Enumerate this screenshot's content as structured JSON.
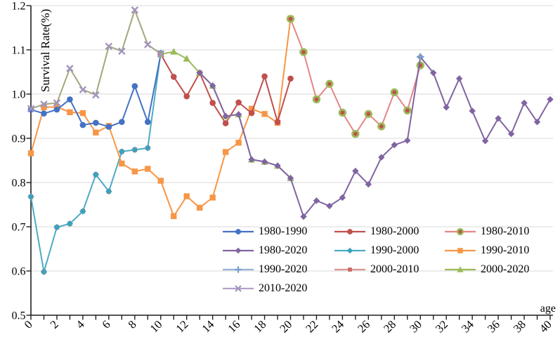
{
  "chart_data": {
    "type": "line",
    "title": "",
    "xlabel": "age",
    "ylabel": "Survival Rate(%)",
    "xlim": [
      0,
      40
    ],
    "ylim": [
      0.5,
      1.2
    ],
    "y_tick_step": 0.1,
    "x_tick_step_labeled": 2,
    "x_tick_step_minor": 1,
    "grid": "horizontal",
    "grid_color": "#D9D9D9",
    "axis_color": "#1F1F1F",
    "legend_position": "inside-bottom-center",
    "y_tick_labels": [
      "0.5",
      "0.6",
      "0.7",
      "0.8",
      "0.9",
      "1.0",
      "1.1",
      "1.2"
    ],
    "x_tick_labels": [
      "0",
      "2",
      "4",
      "6",
      "8",
      "10",
      "12",
      "14",
      "16",
      "18",
      "20",
      "22",
      "24",
      "26",
      "28",
      "30",
      "32",
      "34",
      "36",
      "38",
      "40"
    ],
    "series": [
      {
        "name": "1980-1990",
        "line_color": "#4472C4",
        "marker": "circle",
        "marker_color": "#4472C4",
        "start_x": 0,
        "values": [
          0.965,
          0.956,
          0.965,
          0.988,
          0.93,
          0.935,
          0.926,
          0.937,
          1.018,
          0.937,
          1.09
        ]
      },
      {
        "name": "1980-2000",
        "line_color": "#C0504D",
        "marker": "circle",
        "marker_color": "#C0504D",
        "start_x": 10,
        "values": [
          1.09,
          1.039,
          0.995,
          1.048,
          0.98,
          0.934,
          0.981,
          0.957,
          1.04,
          0.937,
          1.035
        ]
      },
      {
        "name": "1980-2010",
        "line_color": "#E38784",
        "marker": "ring-circle",
        "marker_color": "#C0504D",
        "marker_ring_color": "#9BBB59",
        "start_x": 20,
        "values": [
          1.17,
          1.095,
          0.988,
          1.023,
          0.958,
          0.91,
          0.955,
          0.927,
          1.004,
          0.963,
          1.065
        ]
      },
      {
        "name": "1980-2020",
        "line_color": "#8064A2",
        "marker": "diamond",
        "marker_color": "#8064A2",
        "start_x": 13,
        "values": [
          1.048,
          1.019,
          0.95,
          0.954,
          0.852,
          0.847,
          0.838,
          0.81,
          0.723,
          0.759,
          0.747,
          0.766,
          0.826,
          0.796,
          0.857,
          0.885,
          0.895,
          1.084,
          1.048,
          0.97,
          1.035,
          0.962,
          0.894,
          0.945,
          0.91,
          0.98,
          0.937,
          0.988
        ]
      },
      {
        "name": "1990-2000",
        "line_color": "#4BACC6",
        "marker": "diamond",
        "marker_color": "#3BA2BC",
        "start_x": 0,
        "values": [
          0.768,
          0.598,
          0.699,
          0.707,
          0.735,
          0.818,
          0.78,
          0.87,
          0.874,
          0.878,
          1.093
        ]
      },
      {
        "name": "1990-2010",
        "line_color": "#F79646",
        "marker": "square",
        "marker_color": "#F79646",
        "start_x": 0,
        "values": [
          0.866,
          0.97,
          0.971,
          0.959,
          0.957,
          0.913,
          0.928,
          0.843,
          0.825,
          0.831,
          0.804,
          0.724,
          0.769,
          0.743,
          0.766,
          0.869,
          0.89,
          0.967,
          0.955,
          0.935,
          1.171
        ]
      },
      {
        "name": "1990-2020",
        "line_color": "#95B3D7",
        "marker": "plus",
        "marker_color": "#7BA0CD",
        "start_x": 30,
        "values": [
          1.084
        ],
        "note": "overlaps 1980-2020 point at age 30"
      },
      {
        "name": "2000-2010",
        "line_color": "#D99694",
        "marker": "small-square",
        "marker_color": "#CD6A66",
        "start_x": 0,
        "values": [
          0.768,
          0.598,
          0.699,
          0.707,
          0.735,
          0.818,
          0.78,
          0.87,
          0.874,
          0.878,
          1.093
        ],
        "note": "coincides with 1990-2000 series"
      },
      {
        "name": "2000-2020",
        "line_color": "#9BBB59",
        "marker": "triangle",
        "marker_color": "#9BBB59",
        "start_x": 10,
        "values": [
          1.09,
          1.096,
          1.08,
          1.048,
          1.019,
          0.95,
          0.954,
          0.852,
          0.847,
          0.838,
          0.81
        ]
      },
      {
        "name": "2010-2020",
        "line_color": "#A5A67D",
        "legend_line_color": "#B3A2C7",
        "marker": "x",
        "marker_color": "#A294BE",
        "start_x": 0,
        "values": [
          0.967,
          0.977,
          0.98,
          1.058,
          1.01,
          0.998,
          1.108,
          1.097,
          1.19,
          1.112,
          1.091
        ]
      }
    ],
    "z_order": [
      "2000-2010",
      "1990-2000",
      "1990-2010",
      "1980-1990",
      "1980-2000",
      "1980-2010",
      "2000-2020",
      "1980-2020",
      "2010-2020",
      "1990-2020"
    ]
  }
}
